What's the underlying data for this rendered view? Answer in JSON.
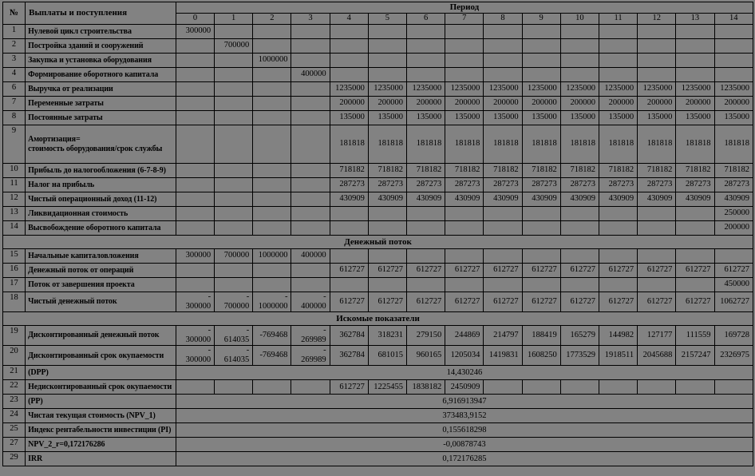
{
  "colors": {
    "background": "#828282",
    "border": "#000000",
    "text": "#000000"
  },
  "table": {
    "header": {
      "num": "№",
      "label": "Выплаты и поступления",
      "period": "Период",
      "periods": [
        "0",
        "1",
        "2",
        "3",
        "4",
        "5",
        "6",
        "7",
        "8",
        "9",
        "10",
        "11",
        "12",
        "13",
        "14"
      ]
    },
    "rows": [
      {
        "type": "data",
        "num": "1",
        "label": "Нулевой цикл строительства",
        "cells": [
          "300000",
          "",
          "",
          "",
          "",
          "",
          "",
          "",
          "",
          "",
          "",
          "",
          "",
          "",
          ""
        ]
      },
      {
        "type": "data",
        "num": "2",
        "label": "Постройка зданий и сооружений",
        "cells": [
          "",
          "700000",
          "",
          "",
          "",
          "",
          "",
          "",
          "",
          "",
          "",
          "",
          "",
          "",
          ""
        ]
      },
      {
        "type": "data",
        "num": "3",
        "label": "Закупка и установка оборудования",
        "cells": [
          "",
          "",
          "1000000",
          "",
          "",
          "",
          "",
          "",
          "",
          "",
          "",
          "",
          "",
          "",
          ""
        ]
      },
      {
        "type": "data",
        "num": "4",
        "label": "Формирование оборотного капитала",
        "cells": [
          "",
          "",
          "",
          "400000",
          "",
          "",
          "",
          "",
          "",
          "",
          "",
          "",
          "",
          "",
          ""
        ]
      },
      {
        "type": "data",
        "num": "6",
        "label": "Выручка от реализации",
        "cells": [
          "",
          "",
          "",
          "",
          "1235000",
          "1235000",
          "1235000",
          "1235000",
          "1235000",
          "1235000",
          "1235000",
          "1235000",
          "1235000",
          "1235000",
          "1235000"
        ]
      },
      {
        "type": "data",
        "num": "7",
        "label": "Переменные затраты",
        "cells": [
          "",
          "",
          "",
          "",
          "200000",
          "200000",
          "200000",
          "200000",
          "200000",
          "200000",
          "200000",
          "200000",
          "200000",
          "200000",
          "200000"
        ]
      },
      {
        "type": "data",
        "num": "8",
        "label": "Постоянные затраты",
        "cells": [
          "",
          "",
          "",
          "",
          "135000",
          "135000",
          "135000",
          "135000",
          "135000",
          "135000",
          "135000",
          "135000",
          "135000",
          "135000",
          "135000"
        ]
      },
      {
        "type": "data",
        "num": "9",
        "label": "Амортизация=\nстоимость оборудования/срок службы",
        "cells": [
          "",
          "",
          "",
          "",
          "181818",
          "181818",
          "181818",
          "181818",
          "181818",
          "181818",
          "181818",
          "181818",
          "181818",
          "181818",
          "181818"
        ]
      },
      {
        "type": "data",
        "num": "10",
        "label": "Прибыль до налогообложения (6-7-8-9)",
        "cells": [
          "",
          "",
          "",
          "",
          "718182",
          "718182",
          "718182",
          "718182",
          "718182",
          "718182",
          "718182",
          "718182",
          "718182",
          "718182",
          "718182"
        ]
      },
      {
        "type": "data",
        "num": "11",
        "label": "Налог на прибыль",
        "cells": [
          "",
          "",
          "",
          "",
          "287273",
          "287273",
          "287273",
          "287273",
          "287273",
          "287273",
          "287273",
          "287273",
          "287273",
          "287273",
          "287273"
        ]
      },
      {
        "type": "data",
        "num": "12",
        "label": "Чистый операционный доход (11-12)",
        "cells": [
          "",
          "",
          "",
          "",
          "430909",
          "430909",
          "430909",
          "430909",
          "430909",
          "430909",
          "430909",
          "430909",
          "430909",
          "430909",
          "430909"
        ]
      },
      {
        "type": "data",
        "num": "13",
        "label": "Ликвидационная стоимость",
        "cells": [
          "",
          "",
          "",
          "",
          "",
          "",
          "",
          "",
          "",
          "",
          "",
          "",
          "",
          "",
          "250000"
        ]
      },
      {
        "type": "data",
        "num": "14",
        "label": "Высвобождение оборотного капитала",
        "cells": [
          "",
          "",
          "",
          "",
          "",
          "",
          "",
          "",
          "",
          "",
          "",
          "",
          "",
          "",
          "200000"
        ]
      },
      {
        "type": "section",
        "label": "Денежный поток"
      },
      {
        "type": "data",
        "num": "15",
        "label": "Начальные капиталовложения",
        "cells": [
          "300000",
          "700000",
          "1000000",
          "400000",
          "",
          "",
          "",
          "",
          "",
          "",
          "",
          "",
          "",
          "",
          ""
        ]
      },
      {
        "type": "data",
        "num": "16",
        "label": "Денежный поток от операций",
        "cells": [
          "",
          "",
          "",
          "",
          "612727",
          "612727",
          "612727",
          "612727",
          "612727",
          "612727",
          "612727",
          "612727",
          "612727",
          "612727",
          "612727"
        ]
      },
      {
        "type": "data",
        "num": "17",
        "label": "Поток от завершения проекта",
        "cells": [
          "",
          "",
          "",
          "",
          "",
          "",
          "",
          "",
          "",
          "",
          "",
          "",
          "",
          "",
          "450000"
        ]
      },
      {
        "type": "data",
        "num": "18",
        "label": "Чистый денежный поток",
        "cells": [
          "-\n300000",
          "-\n700000",
          "-\n1000000",
          "-\n400000",
          "612727",
          "612727",
          "612727",
          "612727",
          "612727",
          "612727",
          "612727",
          "612727",
          "612727",
          "612727",
          "1062727"
        ]
      },
      {
        "type": "section",
        "label": "Искомые показатели"
      },
      {
        "type": "data",
        "num": "19",
        "label": "Дисконтированный денежный поток",
        "cells": [
          "-\n300000",
          "-\n614035",
          "-769468",
          "-\n269989",
          "362784",
          "318231",
          "279150",
          "244869",
          "214797",
          "188419",
          "165279",
          "144982",
          "127177",
          "111559",
          "169728"
        ]
      },
      {
        "type": "data",
        "num": "20",
        "label": "Дисконтированный срок окупаемости",
        "cells": [
          "-\n300000",
          "-\n614035",
          "-769468",
          "-\n269989",
          "362784",
          "681015",
          "960165",
          "1205034",
          "1419831",
          "1608250",
          "1773529",
          "1918511",
          "2045688",
          "2157247",
          "2326975"
        ]
      },
      {
        "type": "merged",
        "num": "21",
        "label": "(DPP)",
        "value": "14,430246"
      },
      {
        "type": "data",
        "num": "22",
        "label": "Недисконтированный срок окупаемости",
        "cells": [
          "",
          "",
          "",
          "",
          "612727",
          "1225455",
          "1838182",
          "2450909",
          "",
          "",
          "",
          "",
          "",
          "",
          ""
        ]
      },
      {
        "type": "merged",
        "num": "23",
        "label": "(PP)",
        "value": "6,916913947"
      },
      {
        "type": "merged",
        "num": "24",
        "label": "Чистая текущая стоимость (NPV_1)",
        "value": "373483,9152"
      },
      {
        "type": "merged",
        "num": "25",
        "label": "Индекс рентабельности инвестиции (PI)",
        "value": "0,155618298"
      },
      {
        "type": "merged",
        "num": "27",
        "label": "NPV_2_r=0,172176286",
        "value": "-0,00878743"
      },
      {
        "type": "merged",
        "num": "29",
        "label": "IRR",
        "value": "0,172176285"
      }
    ]
  }
}
